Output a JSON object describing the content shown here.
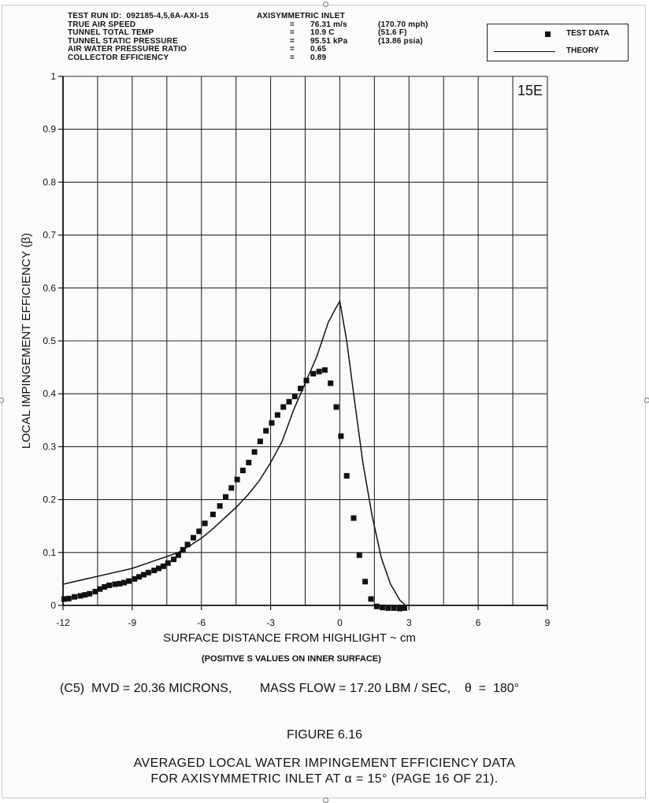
{
  "header": {
    "test_run_label": "TEST RUN ID:",
    "test_run_id": "092185-4,5,6A-AXI-15",
    "config": "AXISYMMETRIC INLET",
    "rows": [
      {
        "label": "TRUE AIR SPEED",
        "eq": "=",
        "value": "76.31 m/s",
        "alt": "(170.70 mph)"
      },
      {
        "label": "TUNNEL TOTAL TEMP",
        "eq": "=",
        "value": "10.9 C",
        "alt": "(51.6 F)"
      },
      {
        "label": "TUNNEL STATIC PRESSURE",
        "eq": "=",
        "value": "95.51 kPa",
        "alt": "(13.86 psia)"
      },
      {
        "label": "AIR WATER PRESSURE RATIO",
        "eq": "=",
        "value": "0.65",
        "alt": ""
      },
      {
        "label": "COLLECTOR EFFICIENCY",
        "eq": "=",
        "value": "0.89",
        "alt": ""
      }
    ]
  },
  "legend": {
    "test_data": "TEST DATA",
    "theory": "THEORY"
  },
  "chart_data": {
    "type": "scatter",
    "panel_label": "15E",
    "xlabel": "SURFACE DISTANCE FROM HIGHLIGHT ~ cm",
    "ylabel": "LOCAL IMPINGEMENT EFFICIENCY (β)",
    "xlim": [
      -12,
      9
    ],
    "ylim": [
      0,
      1
    ],
    "xticks": [
      -12,
      -9,
      -6,
      -3,
      0,
      3,
      6,
      9
    ],
    "xtick_labels": [
      "-12",
      "-9",
      "-6",
      "-3",
      "0",
      "3",
      "6",
      "9"
    ],
    "yticks": [
      0,
      0.1,
      0.2,
      0.3,
      0.4,
      0.5,
      0.6,
      0.7,
      0.8,
      0.9,
      1
    ],
    "ytick_labels": [
      "0",
      "0.1",
      "0.2",
      "0.3",
      "0.4",
      "0.5",
      "0.6",
      "0.7",
      "0.8",
      "0.9",
      "1"
    ],
    "grid": true,
    "legend_position": "top-right",
    "series": [
      {
        "name": "TEST DATA",
        "style": "markers",
        "color": "#111111",
        "x": [
          -11.95,
          -11.75,
          -11.5,
          -11.25,
          -11.05,
          -10.85,
          -10.6,
          -10.4,
          -10.2,
          -10.0,
          -9.75,
          -9.55,
          -9.35,
          -9.15,
          -8.9,
          -8.7,
          -8.5,
          -8.3,
          -8.05,
          -7.85,
          -7.65,
          -7.45,
          -7.2,
          -7.0,
          -6.8,
          -6.6,
          -6.35,
          -6.1,
          -5.85,
          -5.5,
          -5.2,
          -4.95,
          -4.7,
          -4.45,
          -4.2,
          -3.95,
          -3.7,
          -3.45,
          -3.2,
          -2.95,
          -2.7,
          -2.45,
          -2.2,
          -1.95,
          -1.7,
          -1.45,
          -1.15,
          -0.9,
          -0.65,
          -0.4,
          -0.15,
          0.05,
          0.3,
          0.6,
          0.85,
          1.1,
          1.35,
          1.6,
          1.85,
          2.1,
          2.35,
          2.6,
          2.8
        ],
        "y": [
          0.012,
          0.013,
          0.016,
          0.018,
          0.02,
          0.022,
          0.026,
          0.031,
          0.035,
          0.038,
          0.04,
          0.041,
          0.043,
          0.046,
          0.05,
          0.054,
          0.058,
          0.062,
          0.066,
          0.07,
          0.074,
          0.08,
          0.087,
          0.095,
          0.105,
          0.115,
          0.128,
          0.14,
          0.155,
          0.172,
          0.188,
          0.205,
          0.222,
          0.238,
          0.255,
          0.27,
          0.29,
          0.31,
          0.33,
          0.345,
          0.36,
          0.375,
          0.385,
          0.395,
          0.41,
          0.425,
          0.438,
          0.442,
          0.445,
          0.42,
          0.375,
          0.32,
          0.245,
          0.165,
          0.095,
          0.045,
          0.012,
          -0.002,
          -0.004,
          -0.005,
          -0.005,
          -0.006,
          -0.005
        ]
      },
      {
        "name": "THEORY",
        "style": "line",
        "color": "#111111",
        "x": [
          -12,
          -11,
          -10,
          -9,
          -8,
          -7,
          -6.5,
          -6,
          -5.5,
          -5,
          -4.5,
          -4,
          -3.5,
          -3,
          -2.5,
          -2,
          -1.5,
          -1,
          -0.5,
          -0.2,
          0,
          0.3,
          0.6,
          1,
          1.4,
          1.8,
          2.2,
          2.6,
          2.9
        ],
        "y": [
          0.04,
          0.05,
          0.06,
          0.07,
          0.085,
          0.1,
          0.113,
          0.127,
          0.145,
          0.165,
          0.185,
          0.208,
          0.235,
          0.27,
          0.31,
          0.37,
          0.42,
          0.47,
          0.535,
          0.56,
          0.575,
          0.5,
          0.4,
          0.27,
          0.17,
          0.09,
          0.04,
          0.01,
          -0.002
        ]
      }
    ]
  },
  "notes": {
    "positive_s": "(POSITIVE S VALUES ON INNER SURFACE)",
    "conditions": "(C5)  MVD = 20.36 MICRONS,        MASS FLOW = 17.20 LBM / SEC,    θ  =  180°"
  },
  "figure": {
    "number": "FIGURE 6.16",
    "title_line1": "AVERAGED LOCAL WATER IMPINGEMENT EFFICIENCY DATA",
    "title_line2": "FOR AXISYMMETRIC INLET AT α = 15° (PAGE 16 OF 21)."
  }
}
